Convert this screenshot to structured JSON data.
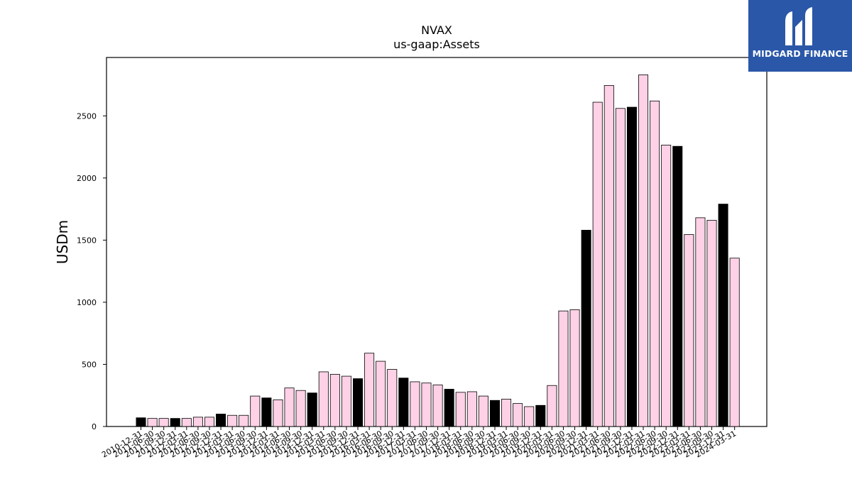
{
  "brand": {
    "name": "MIDGARD FINANCE",
    "logo_icon": "midgard-finance-logo-icon",
    "background_color": "#2a57a8"
  },
  "chart_data": {
    "type": "bar",
    "title": "NVAX",
    "subtitle": "us-gaap:Assets",
    "xlabel": "",
    "ylabel": "USDm",
    "ylim": [
      0,
      2970
    ],
    "yticks": [
      0,
      500,
      1000,
      1500,
      2000,
      2500
    ],
    "grid": false,
    "legend": "none",
    "colors": {
      "annual": "#000000",
      "quarterly": "#ffd1e6",
      "edge": "#000000"
    },
    "categories": [
      "2010-12-31",
      "2011-06-30",
      "2011-09-30",
      "2011-12-31",
      "2012-03-31",
      "2012-06-30",
      "2012-09-30",
      "2012-12-31",
      "2013-03-31",
      "2013-06-30",
      "2013-09-30",
      "2013-12-31",
      "2014-03-31",
      "2014-06-30",
      "2014-09-30",
      "2014-12-31",
      "2015-03-31",
      "2015-06-30",
      "2015-09-30",
      "2015-12-31",
      "2016-03-31",
      "2016-06-30",
      "2016-09-30",
      "2016-12-31",
      "2017-03-31",
      "2017-06-30",
      "2017-09-30",
      "2017-12-31",
      "2018-03-31",
      "2018-06-30",
      "2018-09-30",
      "2018-12-31",
      "2019-03-31",
      "2019-06-30",
      "2019-09-30",
      "2019-12-31",
      "2020-03-31",
      "2020-06-30",
      "2020-09-30",
      "2020-12-31",
      "2021-03-31",
      "2021-06-30",
      "2021-09-30",
      "2021-12-31",
      "2022-03-31",
      "2022-06-30",
      "2022-09-30",
      "2022-12-31",
      "2023-03-31",
      "2023-06-30",
      "2023-09-30",
      "2023-12-31",
      "2024-03-31"
    ],
    "values": [
      70,
      65,
      65,
      65,
      65,
      75,
      75,
      100,
      90,
      90,
      245,
      230,
      215,
      310,
      290,
      270,
      440,
      420,
      405,
      385,
      590,
      525,
      460,
      390,
      360,
      350,
      335,
      300,
      275,
      280,
      245,
      210,
      220,
      185,
      160,
      170,
      330,
      930,
      940,
      1580,
      2610,
      2745,
      2560,
      2570,
      2830,
      2620,
      2265,
      2255,
      1545,
      1680,
      1660,
      1790,
      1355
    ],
    "annual": [
      true,
      false,
      false,
      true,
      false,
      false,
      false,
      true,
      false,
      false,
      false,
      true,
      false,
      false,
      false,
      true,
      false,
      false,
      false,
      true,
      false,
      false,
      false,
      true,
      false,
      false,
      false,
      true,
      false,
      false,
      false,
      true,
      false,
      false,
      false,
      true,
      false,
      false,
      false,
      true,
      false,
      false,
      false,
      true,
      false,
      false,
      false,
      true,
      false,
      false,
      false,
      true,
      false
    ]
  }
}
